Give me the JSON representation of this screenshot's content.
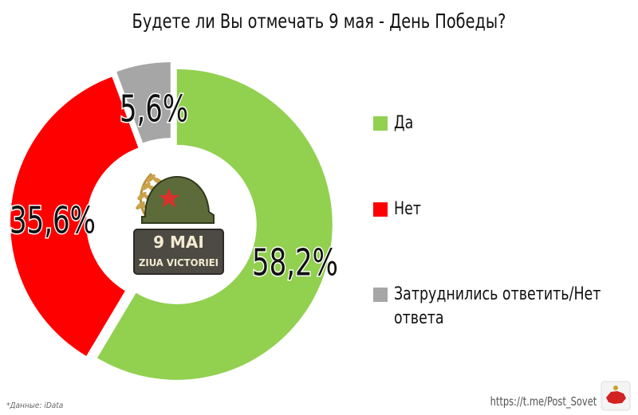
{
  "chart_data": {
    "type": "pie",
    "title": "Будете ли Вы отмечать 9 мая - День Победы?",
    "donut": true,
    "slices": [
      {
        "name": "Да",
        "value": 58.2,
        "label": "58,2%",
        "color": "#92d050"
      },
      {
        "name": "Нет",
        "value": 35.6,
        "label": "35,6%",
        "color": "#ff0000"
      },
      {
        "name": "Затруднились ответить/Нет ответа",
        "value": 5.6,
        "label": "5,6%",
        "color": "#a6a6a6"
      }
    ],
    "legend_position": "right",
    "center_badge": {
      "line1": "9 MAI",
      "line2": "ZIUA VICTORIEI"
    }
  },
  "footer": {
    "source": "*Данные: iData",
    "link": "https://t.me/Post_Sovet"
  }
}
